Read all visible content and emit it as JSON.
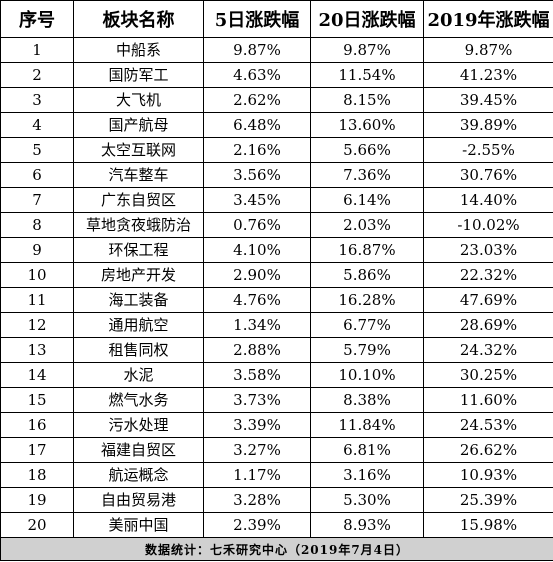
{
  "headers": {
    "index": "序号",
    "name": "板块名称",
    "d5": "5日涨跌幅",
    "d20": "20日涨跌幅",
    "ytd": "2019年涨跌幅"
  },
  "rows": [
    {
      "index": "1",
      "name": "中船系",
      "d5": "9.87%",
      "d20": "9.87%",
      "ytd": "9.87%"
    },
    {
      "index": "2",
      "name": "国防军工",
      "d5": "4.63%",
      "d20": "11.54%",
      "ytd": "41.23%"
    },
    {
      "index": "3",
      "name": "大飞机",
      "d5": "2.62%",
      "d20": "8.15%",
      "ytd": "39.45%"
    },
    {
      "index": "4",
      "name": "国产航母",
      "d5": "6.48%",
      "d20": "13.60%",
      "ytd": "39.89%"
    },
    {
      "index": "5",
      "name": "太空互联网",
      "d5": "2.16%",
      "d20": "5.66%",
      "ytd": "-2.55%"
    },
    {
      "index": "6",
      "name": "汽车整车",
      "d5": "3.56%",
      "d20": "7.36%",
      "ytd": "30.76%"
    },
    {
      "index": "7",
      "name": "广东自贸区",
      "d5": "3.45%",
      "d20": "6.14%",
      "ytd": "14.40%"
    },
    {
      "index": "8",
      "name": "草地贪夜蛾防治",
      "d5": "0.76%",
      "d20": "2.03%",
      "ytd": "-10.02%"
    },
    {
      "index": "9",
      "name": "环保工程",
      "d5": "4.10%",
      "d20": "16.87%",
      "ytd": "23.03%"
    },
    {
      "index": "10",
      "name": "房地产开发",
      "d5": "2.90%",
      "d20": "5.86%",
      "ytd": "22.32%"
    },
    {
      "index": "11",
      "name": "海工装备",
      "d5": "4.76%",
      "d20": "16.28%",
      "ytd": "47.69%"
    },
    {
      "index": "12",
      "name": "通用航空",
      "d5": "1.34%",
      "d20": "6.77%",
      "ytd": "28.69%"
    },
    {
      "index": "13",
      "name": "租售同权",
      "d5": "2.88%",
      "d20": "5.79%",
      "ytd": "24.32%"
    },
    {
      "index": "14",
      "name": "水泥",
      "d5": "3.58%",
      "d20": "10.10%",
      "ytd": "30.25%"
    },
    {
      "index": "15",
      "name": "燃气水务",
      "d5": "3.73%",
      "d20": "8.38%",
      "ytd": "11.60%"
    },
    {
      "index": "16",
      "name": "污水处理",
      "d5": "3.39%",
      "d20": "11.84%",
      "ytd": "24.53%"
    },
    {
      "index": "17",
      "name": "福建自贸区",
      "d5": "3.27%",
      "d20": "6.81%",
      "ytd": "26.62%"
    },
    {
      "index": "18",
      "name": "航运概念",
      "d5": "1.17%",
      "d20": "3.16%",
      "ytd": "10.93%"
    },
    {
      "index": "19",
      "name": "自由贸易港",
      "d5": "3.28%",
      "d20": "5.30%",
      "ytd": "25.39%"
    },
    {
      "index": "20",
      "name": "美丽中国",
      "d5": "2.39%",
      "d20": "8.93%",
      "ytd": "15.98%"
    }
  ],
  "footer": {
    "source": "数据统计：七禾研究中心（2019年7月4日）"
  }
}
